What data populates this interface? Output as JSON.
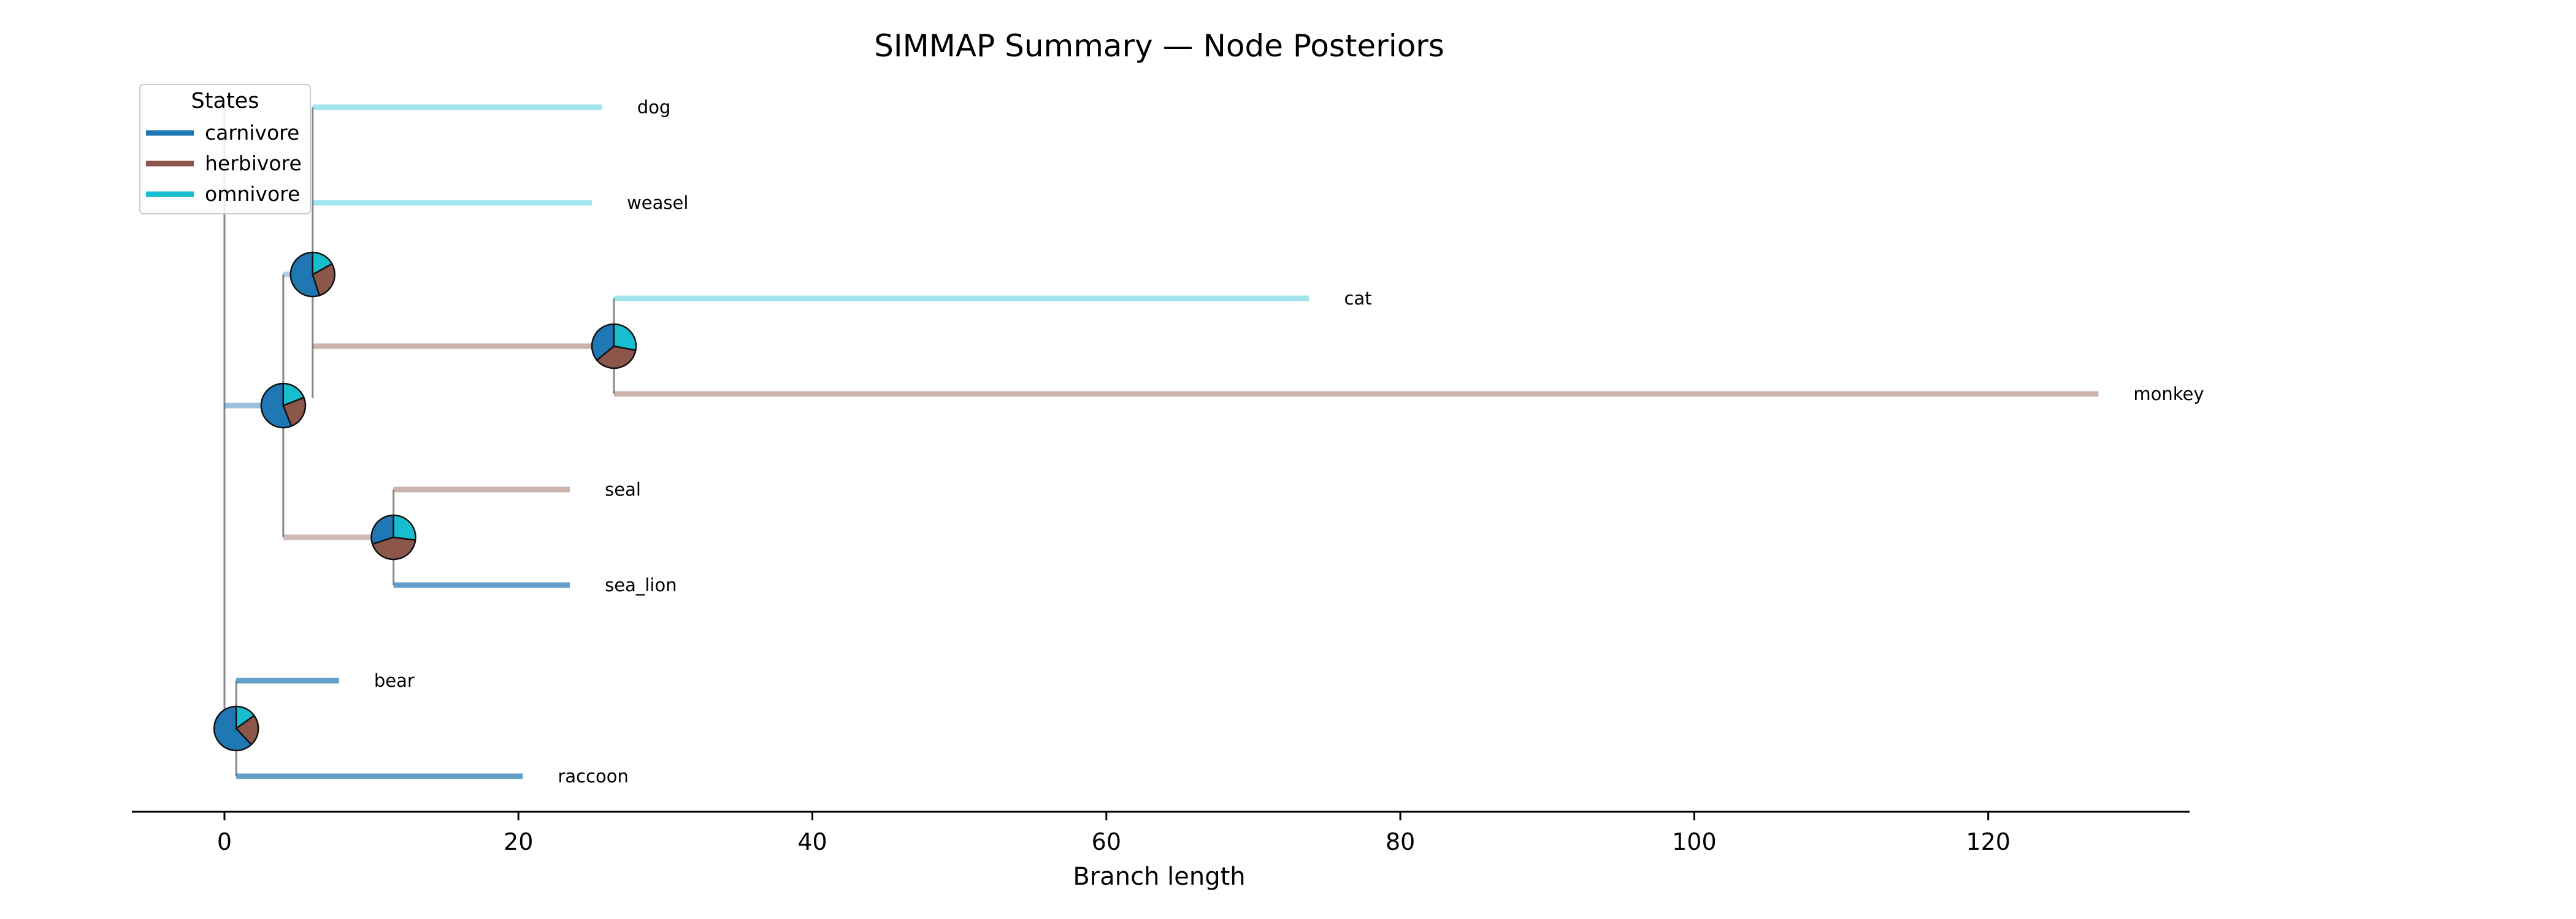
{
  "chart_data": {
    "type": "tree",
    "title": "SIMMAP Summary — Node Posteriors",
    "xlabel": "Branch length",
    "xlim": [
      -6.3,
      133.7
    ],
    "xticks": [
      0,
      20,
      40,
      60,
      80,
      100,
      120
    ],
    "states": [
      {
        "name": "carnivore",
        "color": "#1f77b4"
      },
      {
        "name": "herbivore",
        "color": "#8c564b"
      },
      {
        "name": "omnivore",
        "color": "#17becf"
      }
    ],
    "legend": {
      "title": "States",
      "position": "upper-left"
    },
    "tips": [
      {
        "label": "dog",
        "x_start": 6.0,
        "x_end": 25.7,
        "state": "omnivore"
      },
      {
        "label": "weasel",
        "x_start": 6.0,
        "x_end": 25.0,
        "state": "omnivore"
      },
      {
        "label": "cat",
        "x_start": 26.5,
        "x_end": 73.8,
        "state": "omnivore"
      },
      {
        "label": "monkey",
        "x_start": 26.5,
        "x_end": 127.5,
        "state": "herbivore"
      },
      {
        "label": "seal",
        "x_start": 11.5,
        "x_end": 23.5,
        "state": "herbivore"
      },
      {
        "label": "sea_lion",
        "x_start": 11.5,
        "x_end": 23.5,
        "state": "carnivore"
      },
      {
        "label": "bear",
        "x_start": 0.8,
        "x_end": 7.8,
        "state": "carnivore"
      },
      {
        "label": "raccoon",
        "x_start": 0.8,
        "x_end": 20.3,
        "state": "carnivore"
      }
    ],
    "internal_nodes": [
      {
        "id": "n_dog_weasel",
        "x": 6.0,
        "posterior": {
          "carnivore": 0.55,
          "herbivore": 0.28,
          "omnivore": 0.17
        }
      },
      {
        "id": "n_cat_monkey",
        "x": 26.5,
        "posterior": {
          "carnivore": 0.36,
          "herbivore": 0.36,
          "omnivore": 0.28
        }
      },
      {
        "id": "n_core",
        "x": 4.0,
        "posterior": {
          "carnivore": 0.56,
          "herbivore": 0.25,
          "omnivore": 0.19
        }
      },
      {
        "id": "n_pinniped",
        "x": 11.5,
        "posterior": {
          "carnivore": 0.3,
          "herbivore": 0.43,
          "omnivore": 0.27
        }
      },
      {
        "id": "n_bear_raccoon",
        "x": 0.8,
        "posterior": {
          "carnivore": 0.62,
          "herbivore": 0.23,
          "omnivore": 0.15
        }
      }
    ],
    "internal_branches": [
      {
        "from_x": 4.0,
        "to_x": 6.0,
        "state": "carnivore"
      },
      {
        "from_x": 6.0,
        "to_x": 26.5,
        "state": "herbivore"
      },
      {
        "from_x": 0.0,
        "to_x": 4.0,
        "state": "carnivore"
      },
      {
        "from_x": 4.0,
        "to_x": 11.5,
        "state": "herbivore"
      }
    ],
    "grid": false
  }
}
